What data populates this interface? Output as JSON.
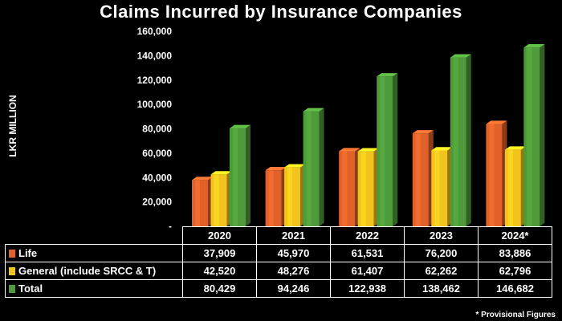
{
  "chart_data": {
    "type": "bar",
    "title": "Claims Incurred by Insurance Companies",
    "ylabel": "LKR MILLION",
    "ylim": [
      0,
      160000
    ],
    "y_ticks": [
      "-",
      "20,000",
      "40,000",
      "60,000",
      "80,000",
      "100,000",
      "120,000",
      "140,000",
      "160,000"
    ],
    "y_tick_values": [
      0,
      20000,
      40000,
      60000,
      80000,
      100000,
      120000,
      140000,
      160000
    ],
    "categories": [
      "2020",
      "2021",
      "2022",
      "2023",
      "2024*"
    ],
    "series": [
      {
        "name": "Life",
        "color": "#e0622a",
        "values": [
          37909,
          45970,
          61531,
          76200,
          83886
        ],
        "display": [
          "37,909",
          "45,970",
          "61,531",
          "76,200",
          "83,886"
        ]
      },
      {
        "name": "General (include SRCC & T)",
        "color": "#f2c21d",
        "values": [
          42520,
          48276,
          61407,
          62262,
          62796
        ],
        "display": [
          "42,520",
          "48,276",
          "61,407",
          "62,262",
          "62,796"
        ]
      },
      {
        "name": "Total",
        "color": "#4f9a3a",
        "values": [
          80429,
          94246,
          122938,
          138462,
          146682
        ],
        "display": [
          "80,429",
          "94,246",
          "122,938",
          "138,462",
          "146,682"
        ]
      }
    ],
    "grid": false,
    "legend": "table-below"
  },
  "footnote": "* Provisional Figures"
}
